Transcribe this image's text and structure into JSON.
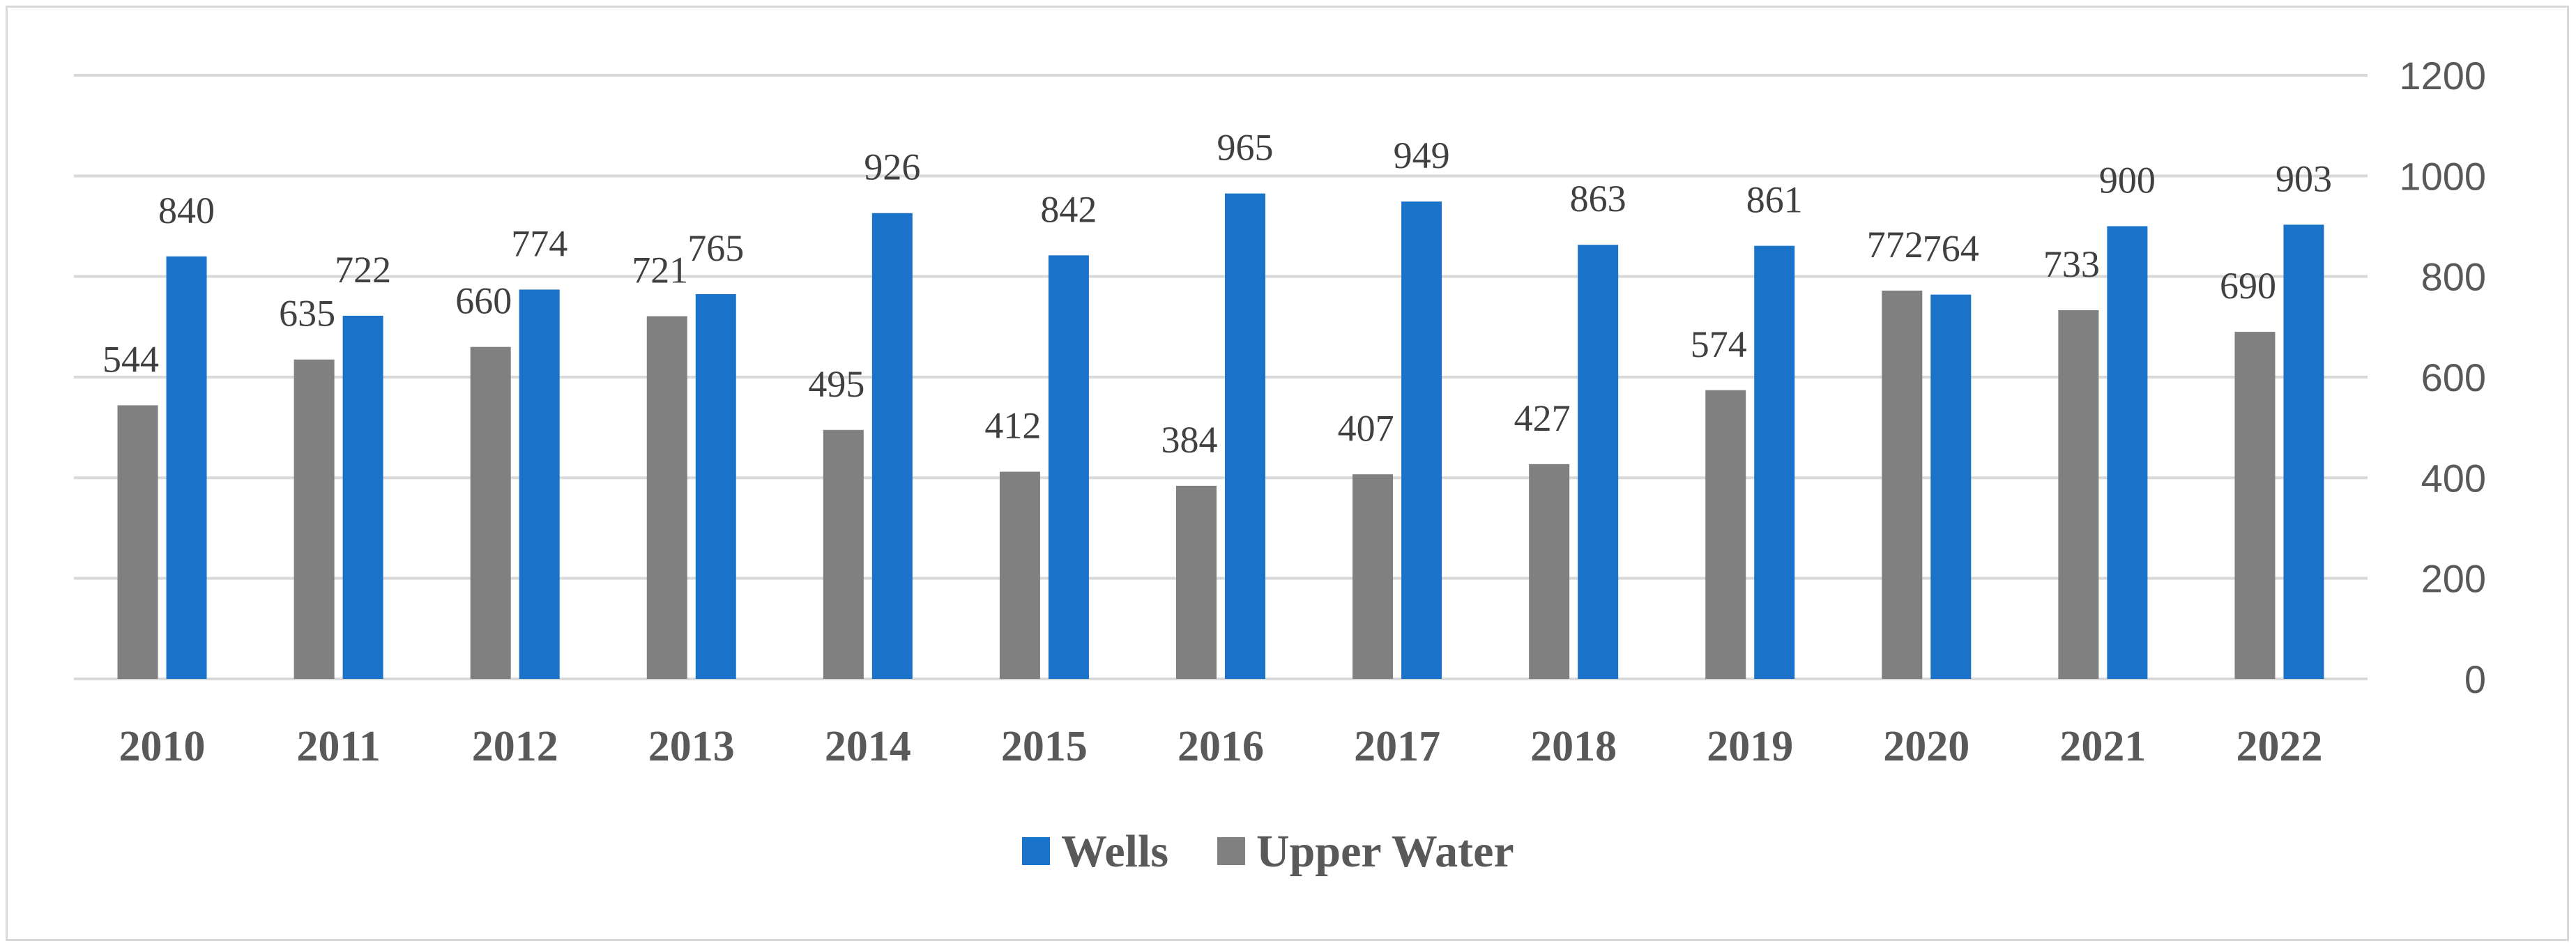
{
  "chart_data": {
    "type": "bar",
    "title": "",
    "xlabel": "",
    "ylabel": "",
    "categories": [
      "2010",
      "2011",
      "2012",
      "2013",
      "2014",
      "2015",
      "2016",
      "2017",
      "2018",
      "2019",
      "2020",
      "2021",
      "2022"
    ],
    "series": [
      {
        "name": "Upper Water",
        "color": "#808080",
        "values": [
          544,
          635,
          660,
          721,
          495,
          412,
          384,
          407,
          427,
          574,
          772,
          733,
          690
        ]
      },
      {
        "name": "Wells",
        "color": "#1a73c8",
        "values": [
          840,
          722,
          774,
          765,
          926,
          842,
          965,
          949,
          863,
          861,
          764,
          900,
          903
        ]
      }
    ],
    "ylim": [
      0,
      1200
    ],
    "yticks": [
      0,
      200,
      400,
      600,
      800,
      1000,
      1200
    ],
    "y_axis_side": "right",
    "grid": true,
    "legend_order": [
      "Wells",
      "Upper Water"
    ],
    "legend_position": "bottom"
  }
}
